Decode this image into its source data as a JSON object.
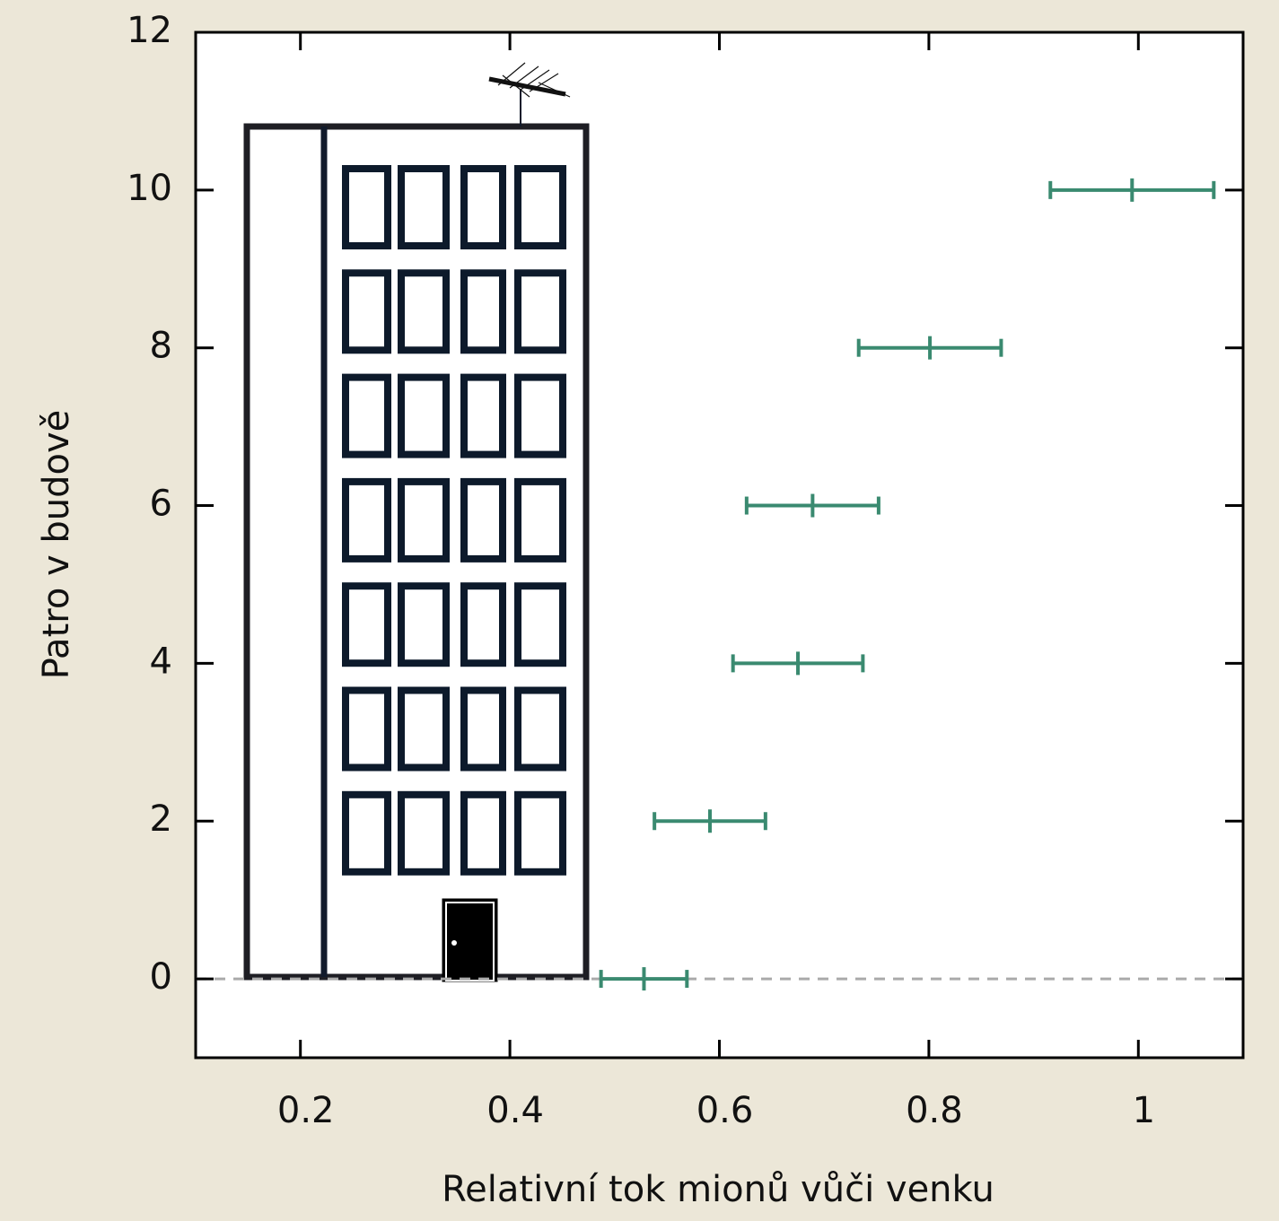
{
  "chart_data": {
    "type": "errorbar",
    "xlabel": "Relativní tok mionů vůči venku",
    "ylabel": "Patro v budově",
    "x": [
      0.528,
      0.591,
      0.675,
      0.689,
      0.801,
      0.994
    ],
    "y": [
      0,
      2,
      4,
      6,
      8,
      10
    ],
    "xerr": [
      0.041,
      0.053,
      0.062,
      0.063,
      0.068,
      0.078
    ],
    "color": "#3a8a70",
    "xlim": [
      0.1,
      1.1
    ],
    "ylim": [
      -1,
      12
    ],
    "xticks": [
      0.2,
      0.4,
      0.6,
      0.8,
      1
    ],
    "yticks": [
      0,
      2,
      4,
      6,
      8,
      10,
      12
    ],
    "reference_line": 0
  }
}
